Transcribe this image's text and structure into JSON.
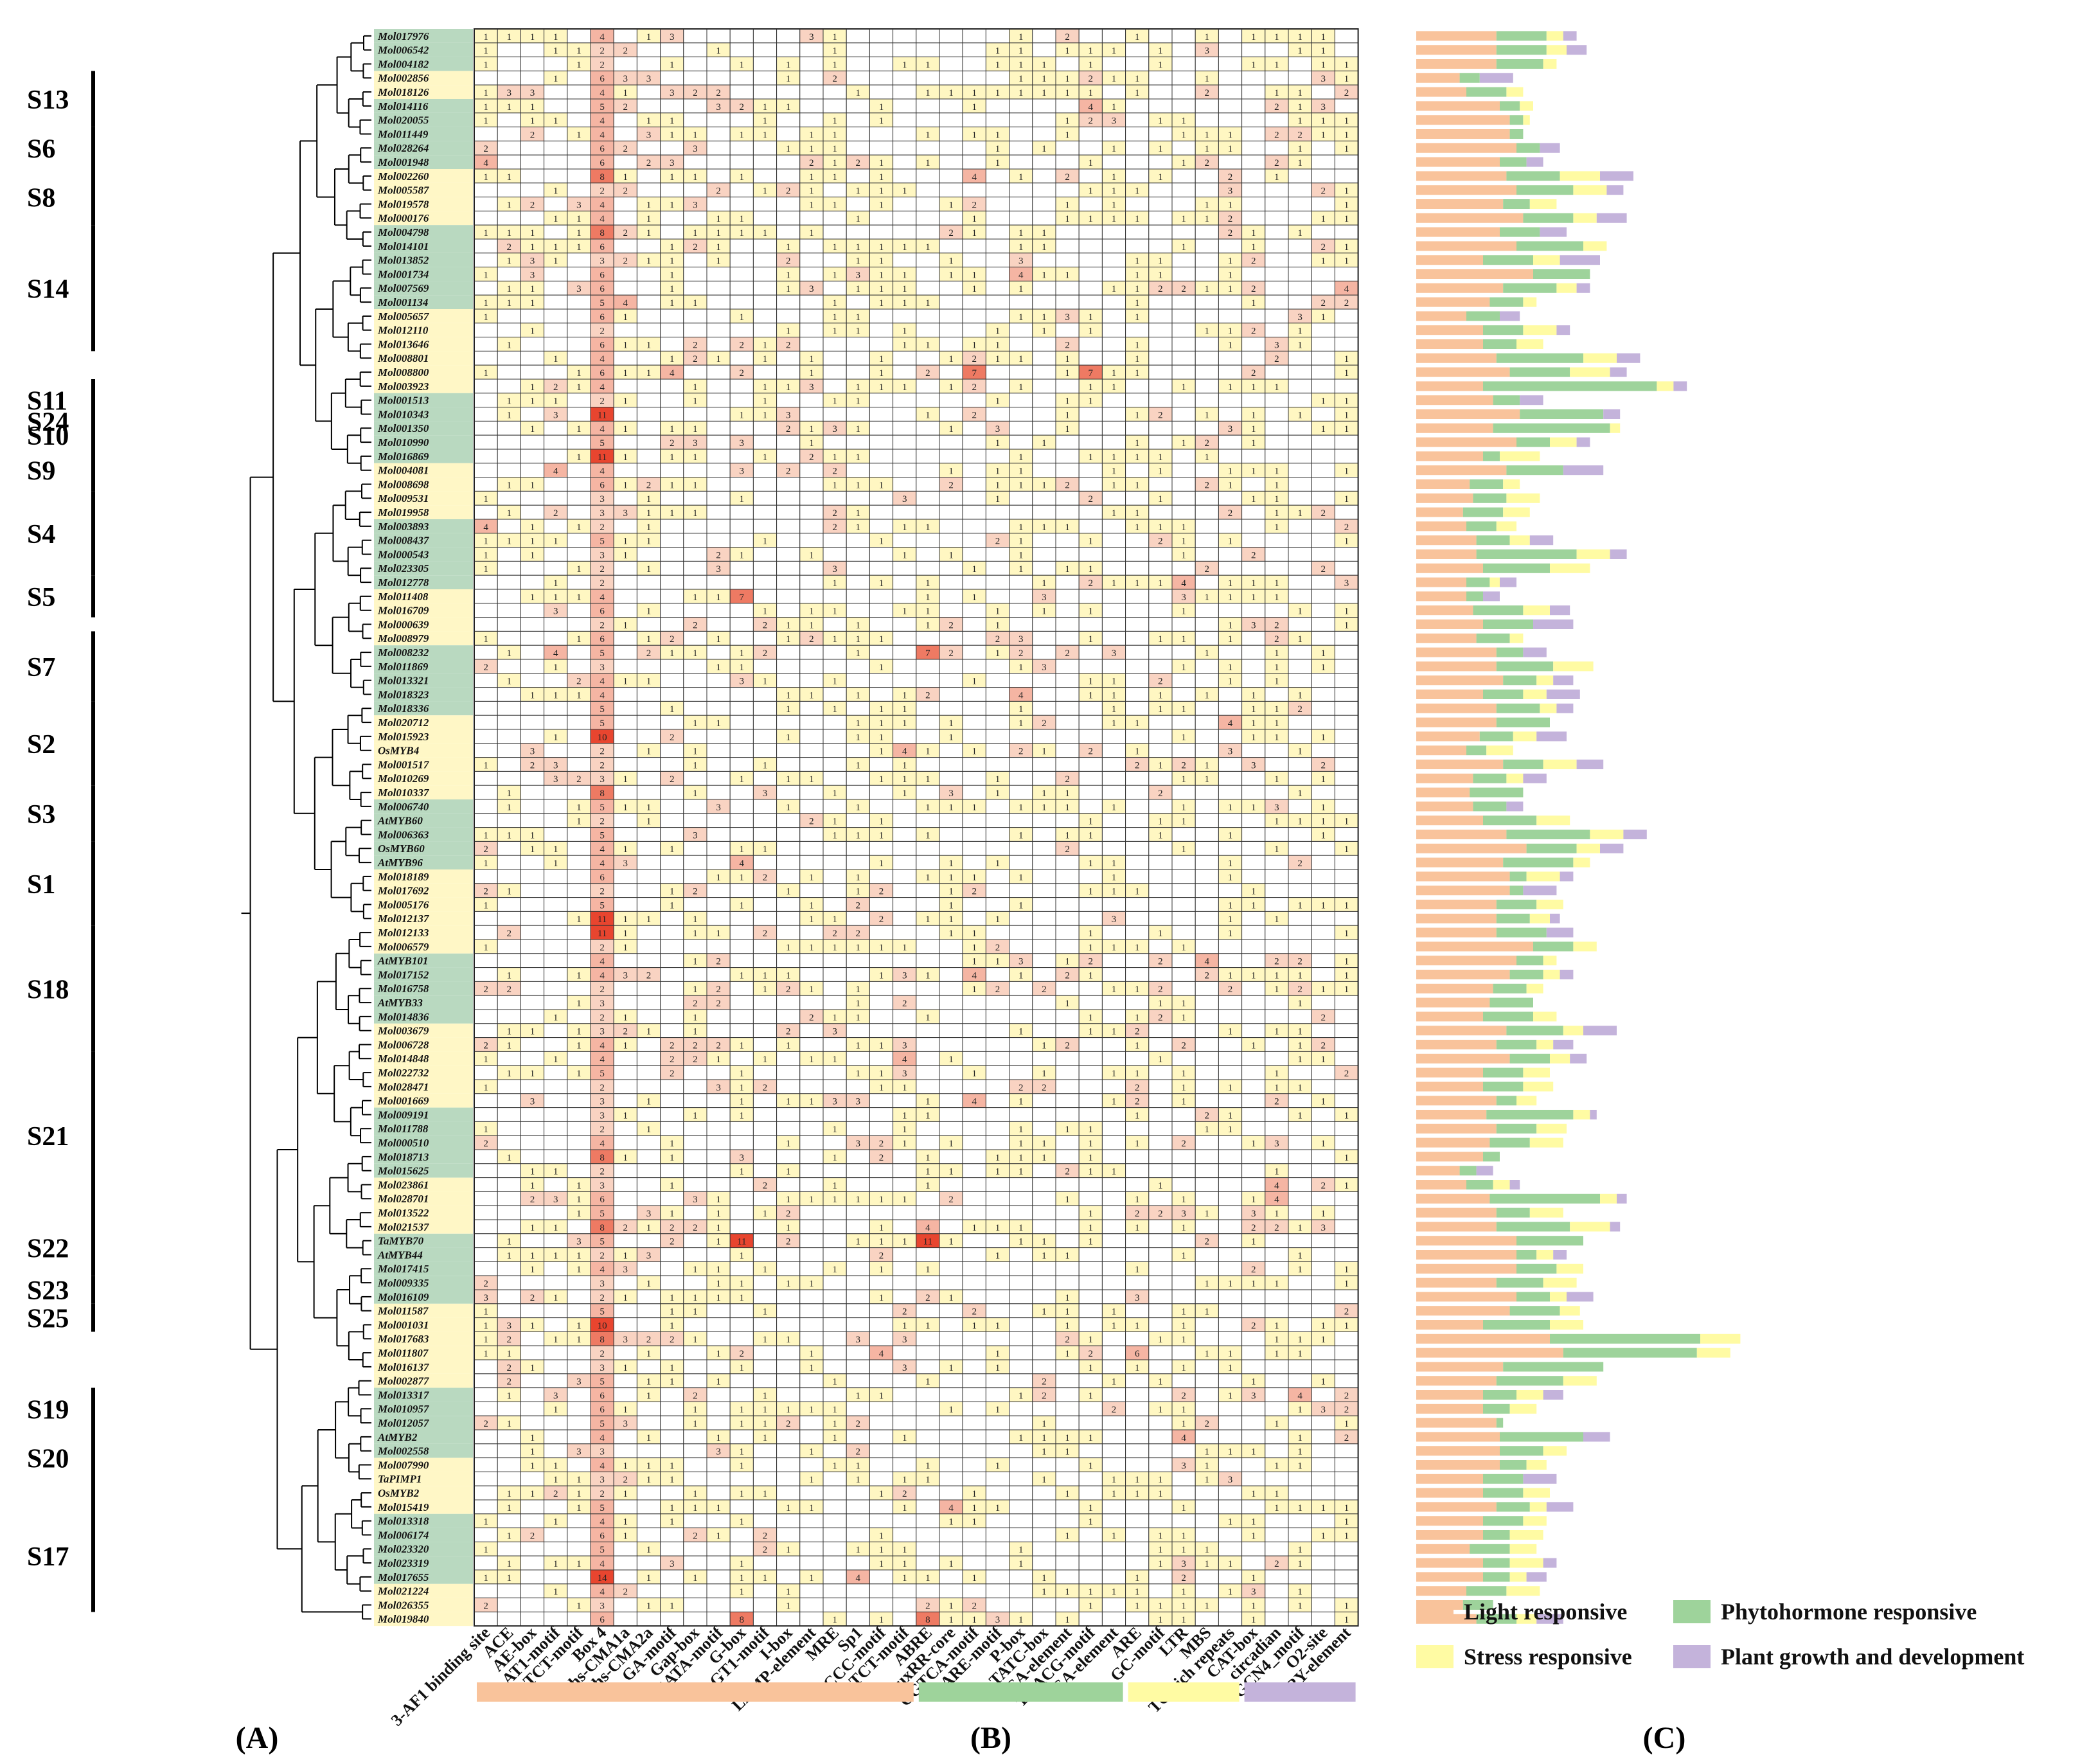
{
  "colors": {
    "light": "#F9C39B",
    "hormone": "#9ED39B",
    "stress": "#FFFBA3",
    "growth": "#C4B3DB",
    "cell_low": "#FFF7C2",
    "cell_mid": "#F5B5A3",
    "cell_high": "#E8452F",
    "row_green": "#B9D9C0",
    "row_yellow": "#FFF7C6"
  },
  "panels": [
    "(A)",
    "(B)",
    "(C)"
  ],
  "legend": [
    {
      "key": "light",
      "label": "Light responsive"
    },
    {
      "key": "hormone",
      "label": "Phytohormone responsive"
    },
    {
      "key": "stress",
      "label": "Stress responsive"
    },
    {
      "key": "growth",
      "label": "Plant growth and development"
    }
  ],
  "groups": [
    {
      "label": "S13",
      "start": 3,
      "end": 6
    },
    {
      "label": "S6",
      "start": 7,
      "end": 9
    },
    {
      "label": "S8",
      "start": 10,
      "end": 13
    },
    {
      "label": "S14",
      "start": 14,
      "end": 22
    },
    {
      "label": "S11",
      "start": 25,
      "end": 27
    },
    {
      "label": "S24",
      "start": 27,
      "end": 28
    },
    {
      "label": "S10",
      "start": 28,
      "end": 29
    },
    {
      "label": "S9",
      "start": 30,
      "end": 32
    },
    {
      "label": "S4",
      "start": 33,
      "end": 38
    },
    {
      "label": "S5",
      "start": 39,
      "end": 41
    },
    {
      "label": "S7",
      "start": 43,
      "end": 47
    },
    {
      "label": "S2",
      "start": 48,
      "end": 53
    },
    {
      "label": "S3",
      "start": 54,
      "end": 57
    },
    {
      "label": "S1",
      "start": 58,
      "end": 63
    },
    {
      "label": "S18",
      "start": 64,
      "end": 72
    },
    {
      "label": "S21",
      "start": 73,
      "end": 84
    },
    {
      "label": "S22",
      "start": 85,
      "end": 88
    },
    {
      "label": "S23",
      "start": 89,
      "end": 90
    },
    {
      "label": "S25",
      "start": 91,
      "end": 92
    },
    {
      "label": "S19",
      "start": 97,
      "end": 99
    },
    {
      "label": "S20",
      "start": 99,
      "end": 104
    },
    {
      "label": "S17",
      "start": 105,
      "end": 112
    }
  ],
  "chart_data": {
    "type": "heatmap",
    "title": "",
    "row_labels": [
      "Mol017976",
      "Mol006542",
      "Mol004182",
      "Mol002856",
      "Mol018126",
      "Mol014116",
      "Mol020055",
      "Mol011449",
      "Mol028264",
      "Mol001948",
      "Mol002260",
      "Mol005587",
      "Mol019578",
      "Mol000176",
      "Mol004798",
      "Mol014101",
      "Mol013852",
      "Mol001734",
      "Mol007569",
      "Mol001134",
      "Mol005657",
      "Mol012110",
      "Mol013646",
      "Mol008801",
      "Mol008800",
      "Mol003923",
      "Mol001513",
      "Mol010343",
      "Mol001350",
      "Mol010990",
      "Mol016869",
      "Mol004081",
      "Mol008698",
      "Mol009531",
      "Mol019958",
      "Mol003893",
      "Mol008437",
      "Mol000543",
      "Mol023305",
      "Mol012778",
      "Mol011408",
      "Mol016709",
      "Mol000639",
      "Mol008979",
      "Mol008232",
      "Mol011869",
      "Mol013321",
      "Mol018323",
      "Mol018336",
      "Mol020712",
      "Mol015923",
      "OsMYB4",
      "Mol001517",
      "Mol010269",
      "Mol010337",
      "Mol006740",
      "AtMYB60",
      "Mol006363",
      "OsMYB60",
      "AtMYB96",
      "Mol018189",
      "Mol017692",
      "Mol005176",
      "Mol012137",
      "Mol012133",
      "Mol006579",
      "AtMYB101",
      "Mol017152",
      "Mol016758",
      "AtMYB33",
      "Mol014836",
      "Mol003679",
      "Mol006728",
      "Mol014848",
      "Mol022732",
      "Mol028471",
      "Mol001669",
      "Mol009191",
      "Mol011788",
      "Mol000510",
      "Mol018713",
      "Mol015625",
      "Mol023861",
      "Mol028701",
      "Mol013522",
      "Mol021537",
      "TaMYB70",
      "AtMYB44",
      "Mol017415",
      "Mol009335",
      "Mol016109",
      "Mol011587",
      "Mol001031",
      "Mol017683",
      "Mol011807",
      "Mol016137",
      "Mol002877",
      "Mol013317",
      "Mol010957",
      "Mol012057",
      "AtMYB2",
      "Mol002558",
      "Mol007990",
      "TaPIMP1",
      "OsMYB2",
      "Mol015419",
      "Mol013318",
      "Mol006174",
      "Mol023320",
      "Mol023319",
      "Mol017655",
      "Mol021224",
      "Mol026355",
      "Mol019840"
    ],
    "row_shading": "gggyygggggyyyyggggggyyyyyygggggyyyygggggyyyygggggyyyyyygggggyyyyyygggggyyyyyygggggyyyygggggyyyyyygggggyyyygggggyyyyyyggg",
    "column_labels": [
      "3-AF1 binding site",
      "ACE",
      "AE-box",
      "AT1-motif",
      "ATCT-motif",
      "Box 4",
      "chs-CMA1a",
      "chs-CMA2a",
      "GA-motif",
      "Gap-box",
      "GATA-motif",
      "G-box",
      "GT1-motif",
      "I-box",
      "LAMP-element",
      "MRE",
      "Sp1",
      "TCCC-motif",
      "TCT-motif",
      "ABRE",
      "AuxRR-core",
      "CGTCA-motif",
      "GARE-motif",
      "P-box",
      "TATC-box",
      "TCA-element",
      "TGACG-motif",
      "TGA-element",
      "ARE",
      "GC-motif",
      "LTR",
      "MBS",
      "TC-rich repeats",
      "CAT-box",
      "circadian",
      "GCN4_motif",
      "O2-site",
      "RY-element"
    ],
    "column_categories": [
      {
        "key": "light",
        "label": "Light responsive",
        "from": 0,
        "to": 18
      },
      {
        "key": "hormone",
        "label": "Phytohormone responsive",
        "from": 19,
        "to": 27
      },
      {
        "key": "stress",
        "label": "Stress responsive",
        "from": 28,
        "to": 32
      },
      {
        "key": "growth",
        "label": "Plant growth and development",
        "from": 33,
        "to": 37
      }
    ],
    "values_note": "cell counts per gene x motif; 0 = empty",
    "highlight_values": [
      {
        "row": "Mol010343",
        "col": "Box 4",
        "value": 11
      },
      {
        "row": "Mol016869",
        "col": "Box 4",
        "value": 11
      },
      {
        "row": "Mol012137",
        "col": "Box 4",
        "value": 11
      },
      {
        "row": "Mol012133",
        "col": "Box 4",
        "value": 11
      },
      {
        "row": "Mol017655",
        "col": "Box 4",
        "value": 14
      },
      {
        "row": "Mol015923",
        "col": "Box 4",
        "value": 10
      },
      {
        "row": "Mol001031",
        "col": "Box 4",
        "value": 10
      },
      {
        "row": "TaMYB70",
        "col": "G-box",
        "value": 11
      },
      {
        "row": "TaMYB70",
        "col": "ABRE",
        "value": 11
      },
      {
        "row": "Mol008800",
        "col": "CGTCA-motif",
        "value": 7
      },
      {
        "row": "Mol008800",
        "col": "TGACG-motif",
        "value": 7
      },
      {
        "row": "Mol028264",
        "col": "Box 4",
        "value": 6
      },
      {
        "row": "Mol002260",
        "col": "Box 4",
        "value": 8
      },
      {
        "row": "Mol004798",
        "col": "Box 4",
        "value": 8
      },
      {
        "row": "Mol008232",
        "col": "ABRE",
        "value": 7
      },
      {
        "row": "Mol011408",
        "col": "G-box",
        "value": 7
      },
      {
        "row": "Mol010337",
        "col": "Box 4",
        "value": 8
      },
      {
        "row": "Mol021537",
        "col": "Box 4",
        "value": 8
      },
      {
        "row": "Mol017683",
        "col": "Box 4",
        "value": 8
      },
      {
        "row": "Mol019840",
        "col": "ABRE",
        "value": 8
      },
      {
        "row": "Mol019840",
        "col": "G-box",
        "value": 8
      },
      {
        "row": "Mol018713",
        "col": "Box 4",
        "value": 8
      },
      {
        "row": "Mol011807",
        "col": "ARE",
        "value": 6
      }
    ],
    "bar_series": [
      "light",
      "hormone",
      "stress",
      "growth"
    ],
    "bars": [
      [
        24,
        15,
        5,
        4
      ],
      [
        24,
        15,
        6,
        6
      ],
      [
        24,
        14,
        4,
        0
      ],
      [
        13,
        6,
        0,
        10
      ],
      [
        15,
        12,
        5,
        0
      ],
      [
        25,
        6,
        4,
        0
      ],
      [
        28,
        4,
        2,
        0
      ],
      [
        28,
        4,
        0,
        0
      ],
      [
        30,
        7,
        0,
        6
      ],
      [
        25,
        8,
        0,
        5
      ],
      [
        27,
        16,
        12,
        10
      ],
      [
        30,
        17,
        10,
        5
      ],
      [
        26,
        8,
        8,
        0
      ],
      [
        32,
        15,
        7,
        9
      ],
      [
        25,
        12,
        0,
        8
      ],
      [
        30,
        20,
        7,
        0
      ],
      [
        20,
        15,
        8,
        12
      ],
      [
        35,
        17,
        0,
        0
      ],
      [
        26,
        16,
        6,
        4
      ],
      [
        22,
        10,
        4,
        0
      ],
      [
        15,
        10,
        0,
        6
      ],
      [
        20,
        12,
        10,
        4
      ],
      [
        20,
        10,
        8,
        0
      ],
      [
        24,
        26,
        10,
        7
      ],
      [
        28,
        18,
        12,
        5
      ],
      [
        20,
        52,
        5,
        4
      ],
      [
        23,
        8,
        0,
        7
      ],
      [
        31,
        25,
        0,
        5
      ],
      [
        23,
        35,
        3,
        0
      ],
      [
        30,
        10,
        8,
        4
      ],
      [
        20,
        5,
        12,
        0
      ],
      [
        27,
        17,
        0,
        12
      ],
      [
        16,
        10,
        5,
        0
      ],
      [
        17,
        10,
        10,
        0
      ],
      [
        14,
        12,
        8,
        0
      ],
      [
        15,
        9,
        6,
        0
      ],
      [
        18,
        10,
        6,
        7
      ],
      [
        18,
        30,
        10,
        5
      ],
      [
        20,
        20,
        12,
        0
      ],
      [
        15,
        7,
        3,
        5
      ],
      [
        15,
        5,
        0,
        5
      ],
      [
        17,
        15,
        8,
        6
      ],
      [
        20,
        15,
        0,
        12
      ],
      [
        18,
        10,
        4,
        0
      ],
      [
        24,
        8,
        0,
        7
      ],
      [
        24,
        17,
        12,
        0
      ],
      [
        26,
        10,
        5,
        6
      ],
      [
        20,
        12,
        7,
        10
      ],
      [
        24,
        13,
        5,
        5
      ],
      [
        24,
        16,
        0,
        0
      ],
      [
        19,
        10,
        7,
        9
      ],
      [
        15,
        6,
        8,
        0
      ],
      [
        26,
        12,
        10,
        8
      ],
      [
        17,
        10,
        5,
        7
      ],
      [
        16,
        16,
        0,
        0
      ],
      [
        17,
        10,
        0,
        5
      ],
      [
        20,
        16,
        10,
        0
      ],
      [
        27,
        25,
        10,
        7
      ],
      [
        33,
        15,
        7,
        7
      ],
      [
        26,
        21,
        5,
        0
      ],
      [
        28,
        5,
        10,
        4
      ],
      [
        28,
        4,
        0,
        10
      ],
      [
        24,
        12,
        8,
        0
      ],
      [
        24,
        10,
        6,
        3
      ],
      [
        24,
        15,
        0,
        8
      ],
      [
        35,
        12,
        7,
        0
      ],
      [
        30,
        8,
        4,
        0
      ],
      [
        28,
        10,
        5,
        4
      ],
      [
        23,
        10,
        5,
        0
      ],
      [
        22,
        13,
        0,
        0
      ],
      [
        20,
        15,
        7,
        0
      ],
      [
        27,
        17,
        6,
        10
      ],
      [
        24,
        12,
        5,
        6
      ],
      [
        28,
        12,
        6,
        5
      ],
      [
        20,
        12,
        8,
        0
      ],
      [
        20,
        12,
        9,
        0
      ],
      [
        24,
        6,
        6,
        0
      ],
      [
        21,
        26,
        5,
        2
      ],
      [
        24,
        12,
        9,
        0
      ],
      [
        22,
        12,
        10,
        0
      ],
      [
        20,
        5,
        0,
        0
      ],
      [
        13,
        5,
        0,
        5
      ],
      [
        15,
        8,
        5,
        3
      ],
      [
        22,
        33,
        5,
        3
      ],
      [
        24,
        10,
        10,
        0
      ],
      [
        24,
        22,
        12,
        3
      ],
      [
        30,
        20,
        0,
        0
      ],
      [
        30,
        6,
        5,
        4
      ],
      [
        30,
        12,
        8,
        0
      ],
      [
        24,
        14,
        10,
        0
      ],
      [
        30,
        10,
        5,
        8
      ],
      [
        28,
        15,
        6,
        0
      ],
      [
        20,
        20,
        10,
        0
      ],
      [
        40,
        45,
        12,
        0
      ],
      [
        44,
        40,
        10,
        0
      ],
      [
        26,
        30,
        0,
        0
      ],
      [
        24,
        20,
        10,
        0
      ],
      [
        20,
        10,
        8,
        6
      ],
      [
        20,
        8,
        8,
        0
      ],
      [
        24,
        2,
        0,
        0
      ],
      [
        25,
        25,
        0,
        8
      ],
      [
        25,
        13,
        7,
        0
      ],
      [
        25,
        8,
        6,
        0
      ],
      [
        20,
        12,
        0,
        10
      ],
      [
        20,
        12,
        8,
        0
      ],
      [
        24,
        10,
        5,
        8
      ],
      [
        20,
        12,
        7,
        0
      ],
      [
        20,
        8,
        10,
        0
      ],
      [
        16,
        12,
        8,
        0
      ],
      [
        20,
        8,
        10,
        4
      ],
      [
        20,
        8,
        5,
        6
      ],
      [
        15,
        12,
        10,
        0
      ],
      [
        14,
        9,
        0,
        0
      ],
      [
        18,
        12,
        6,
        8
      ]
    ]
  }
}
